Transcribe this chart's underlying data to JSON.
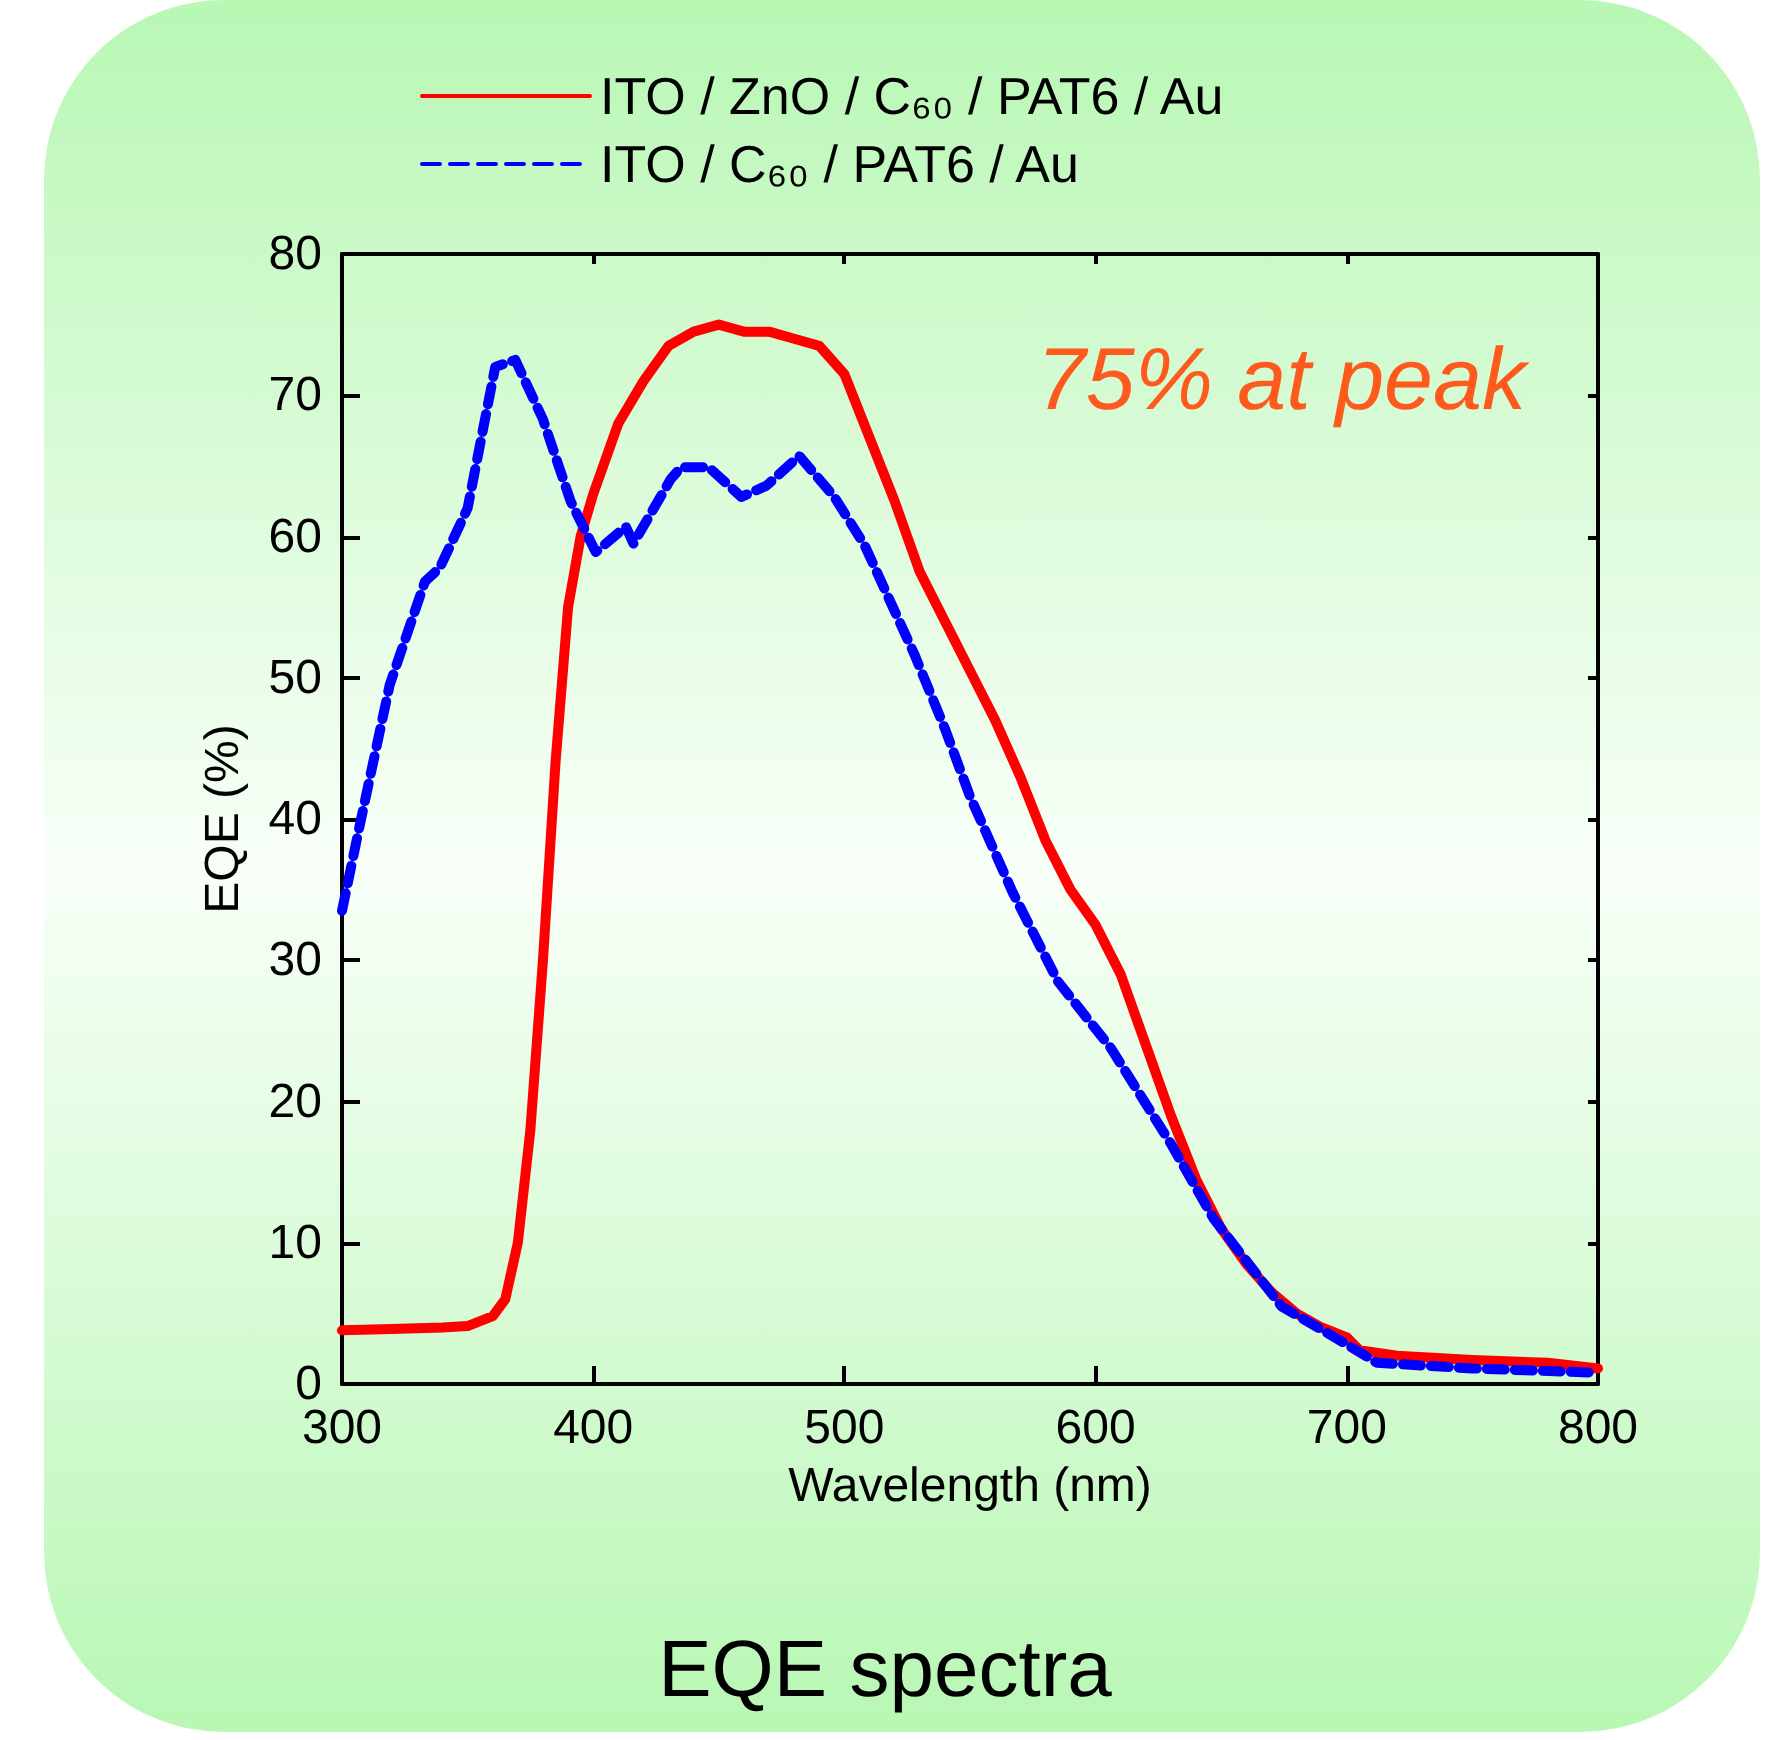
{
  "chart_data": {
    "type": "line",
    "title": "EQE spectra",
    "xlabel": "Wavelength (nm)",
    "ylabel": "EQE (%)",
    "annotations": [
      "75% at peak"
    ],
    "xlim": [
      300,
      800
    ],
    "xticks": [
      300,
      400,
      500,
      600,
      700,
      800
    ],
    "ylim": [
      0,
      80
    ],
    "yticks": [
      0,
      10,
      20,
      30,
      40,
      50,
      60,
      70,
      80
    ],
    "grid": false,
    "legend": "top",
    "marker": "none",
    "series": [
      {
        "name": "ITO / ZnO / C₆₀ / PAT6 / Au",
        "color": "#ff0000",
        "line_style": "solid",
        "x": [
          300,
          320,
          340,
          350,
          360,
          365,
          370,
          375,
          380,
          385,
          390,
          395,
          400,
          410,
          420,
          430,
          440,
          450,
          460,
          470,
          480,
          490,
          500,
          510,
          520,
          530,
          540,
          550,
          560,
          570,
          580,
          590,
          600,
          610,
          620,
          630,
          640,
          650,
          660,
          670,
          680,
          690,
          700,
          705,
          720,
          750,
          780,
          800
        ],
        "values": [
          3.8,
          3.9,
          4.0,
          4.1,
          4.8,
          6,
          10,
          18,
          30,
          44,
          55,
          60,
          63,
          68,
          71,
          73.5,
          74.5,
          75,
          74.5,
          74.5,
          74,
          73.5,
          71.5,
          67,
          62.5,
          57.5,
          54,
          50.5,
          47,
          43,
          38.5,
          35,
          32.5,
          29,
          24,
          19,
          14.5,
          11,
          8.5,
          6.5,
          5,
          4,
          3.3,
          2.4,
          2,
          1.7,
          1.5,
          1.1
        ]
      },
      {
        "name": "ITO / C₆₀ / PAT6 / Au",
        "color": "#0000ff",
        "line_style": "dashed",
        "x": [
          300,
          307,
          319,
          333,
          339,
          350,
          361,
          369,
          380,
          391,
          401,
          413,
          416,
          431,
          435,
          446,
          459,
          469,
          482,
          496,
          508,
          528,
          540,
          550,
          567,
          585,
          606,
          630,
          647,
          674,
          700,
          712,
          750,
          800
        ],
        "values": [
          33.5,
          39.5,
          49.5,
          56.8,
          57.8,
          62,
          72,
          72.5,
          68.3,
          62.5,
          58.9,
          60.7,
          59.5,
          64.1,
          64.9,
          64.9,
          62.8,
          63.6,
          65.7,
          62.8,
          59.4,
          51.6,
          46.4,
          41.6,
          34.8,
          28.5,
          23.8,
          17,
          11.7,
          5.5,
          2.8,
          1.5,
          1.1,
          0.8
        ]
      }
    ]
  }
}
